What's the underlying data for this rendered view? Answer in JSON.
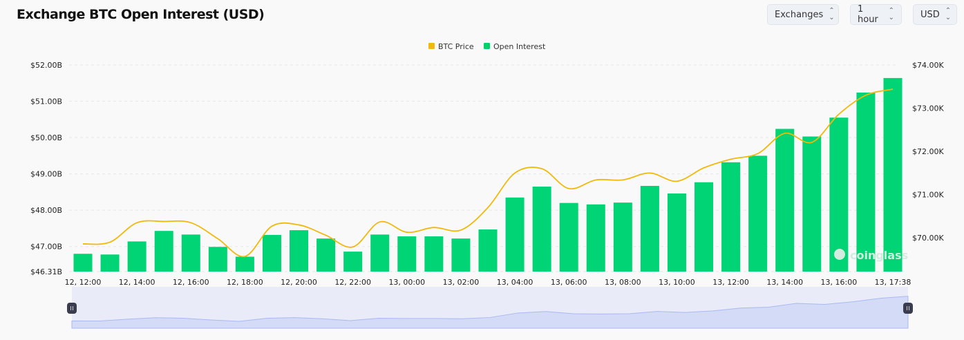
{
  "header": {
    "title": "Exchange BTC Open Interest (USD)"
  },
  "controls": [
    {
      "label": "Exchanges",
      "icon": "chevron-updown-icon"
    },
    {
      "label": "1 hour",
      "icon": "chevron-updown-icon"
    },
    {
      "label": "USD",
      "icon": "chevron-updown-icon"
    }
  ],
  "watermark": "coinglass",
  "chart_data": {
    "type": "bar",
    "title": "Exchange BTC Open Interest (USD)",
    "legend": [
      {
        "name": "BTC Price",
        "color": "#f0b90b"
      },
      {
        "name": "Open Interest",
        "color": "#00d26a"
      }
    ],
    "legend_position": "top-center",
    "x_ticks": [
      "12, 12:00",
      "12, 14:00",
      "12, 16:00",
      "12, 18:00",
      "12, 20:00",
      "12, 22:00",
      "13, 00:00",
      "13, 02:00",
      "13, 04:00",
      "13, 06:00",
      "13, 08:00",
      "13, 10:00",
      "13, 12:00",
      "13, 14:00",
      "13, 16:00",
      "13, 17:38"
    ],
    "y_left": {
      "ticks": [
        "$52.00B",
        "$51.00B",
        "$50.00B",
        "$49.00B",
        "$48.00B",
        "$47.00B",
        "$46.31B"
      ],
      "tick_values": [
        52,
        51,
        50,
        49,
        48,
        47,
        46.31
      ],
      "range": [
        46.31,
        52
      ],
      "unit": "B USD"
    },
    "y_right": {
      "ticks": [
        "$74.00K",
        "$73.00K",
        "$72.00K",
        "$71.00K",
        "$70.00K"
      ],
      "tick_values": [
        74,
        73,
        72,
        71,
        70
      ],
      "range": [
        69.22,
        74
      ],
      "unit": "K USD"
    },
    "series": [
      {
        "name": "Open Interest",
        "type": "bar",
        "axis": "left",
        "values": [
          46.8,
          46.78,
          47.14,
          47.43,
          47.33,
          46.99,
          46.72,
          47.32,
          47.45,
          47.22,
          46.86,
          47.33,
          47.28,
          47.28,
          47.22,
          47.47,
          48.35,
          48.65,
          48.2,
          48.16,
          48.21,
          48.67,
          48.46,
          48.77,
          49.32,
          49.5,
          50.24,
          50.03,
          50.55,
          51.24,
          51.64
        ]
      },
      {
        "name": "BTC Price",
        "type": "line",
        "axis": "right",
        "values": [
          69.86,
          69.9,
          70.35,
          70.38,
          70.35,
          69.98,
          69.57,
          70.27,
          70.3,
          70.06,
          69.79,
          70.37,
          70.13,
          70.24,
          70.18,
          70.7,
          71.5,
          71.6,
          71.14,
          71.34,
          71.34,
          71.5,
          71.31,
          71.62,
          71.82,
          71.95,
          72.42,
          72.21,
          72.86,
          73.3,
          73.44
        ]
      }
    ],
    "grid": true
  }
}
